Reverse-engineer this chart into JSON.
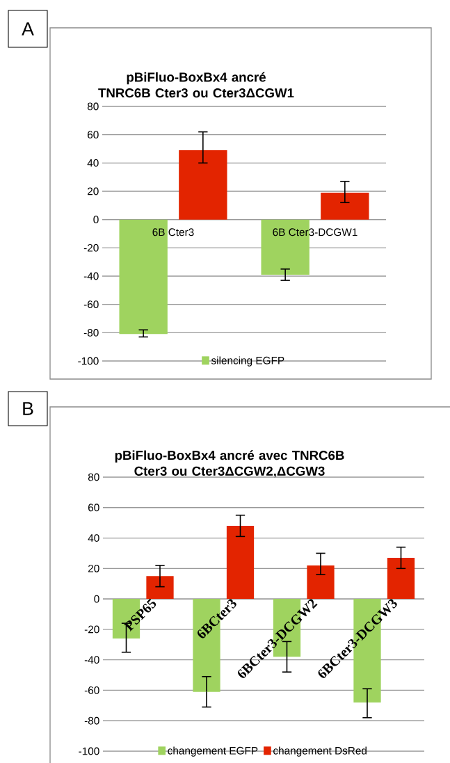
{
  "chart_data": [
    {
      "type": "bar",
      "title": "pBiFluo-BoxBx4 ancré TNRC6B Cter3 ou Cter3ΔCGW1",
      "annotations": [
        "A"
      ],
      "categories": [
        "6B Cter3",
        "6B Cter3-DCGW1"
      ],
      "series": [
        {
          "name": "silencing EGFP",
          "color": "#9fd35f",
          "values": [
            -81,
            -39
          ],
          "errors": [
            [
              -83,
              -78
            ],
            [
              -43,
              -35
            ]
          ]
        },
        {
          "color": "#e32400",
          "values": [
            49,
            19
          ],
          "errors": [
            [
              40,
              62
            ],
            [
              12,
              27
            ]
          ]
        }
      ],
      "ylim": [
        -100,
        80
      ],
      "yticks": [
        -100,
        -80,
        -60,
        -40,
        -20,
        0,
        20,
        40,
        60,
        80
      ],
      "grid": "y",
      "legend": "bottom"
    },
    {
      "type": "bar",
      "title": "pBiFluo-BoxBx4 ancré avec TNRC6B Cter3 ou Cter3ΔCGW2,ΔCGW3",
      "annotations": [
        "B"
      ],
      "categories": [
        "PSP65",
        "6BCter3",
        "6BCter3-DCGW2",
        "6BCter3-DCGW3"
      ],
      "series": [
        {
          "name": "changement EGFP",
          "color": "#9fd35f",
          "values": [
            -26,
            -61,
            -38,
            -68
          ],
          "errors": [
            [
              -35,
              -16
            ],
            [
              -71,
              -51
            ],
            [
              -48,
              -28
            ],
            [
              -78,
              -59
            ]
          ]
        },
        {
          "name": "changement DsRed",
          "color": "#e32400",
          "values": [
            15,
            48,
            22,
            27
          ],
          "errors": [
            [
              8,
              22
            ],
            [
              41,
              55
            ],
            [
              16,
              30
            ],
            [
              20,
              34
            ]
          ]
        }
      ],
      "ylim": [
        -100,
        80
      ],
      "yticks": [
        -100,
        -80,
        -60,
        -40,
        -20,
        0,
        20,
        40,
        60,
        80
      ],
      "grid": "y",
      "legend": "bottom"
    }
  ]
}
